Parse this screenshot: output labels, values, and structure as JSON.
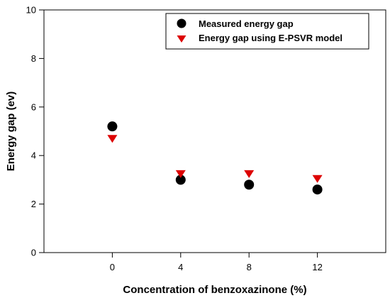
{
  "chart_data": {
    "type": "scatter",
    "xlabel": "Concentration of benzoxazinone (%)",
    "ylabel": "Energy gap (ev)",
    "xlim": [
      -4,
      16
    ],
    "ylim": [
      0,
      10
    ],
    "xticks": [
      0,
      4,
      8,
      12
    ],
    "yticks": [
      0,
      2,
      4,
      6,
      8,
      10
    ],
    "grid": false,
    "legend_position": "top-right",
    "series": [
      {
        "name": "Measured energy gap",
        "marker": "circle",
        "color": "#000000",
        "x": [
          0,
          4,
          8,
          12
        ],
        "y": [
          5.2,
          3.0,
          2.8,
          2.6
        ]
      },
      {
        "name": "Energy gap using E-PSVR model",
        "marker": "triangle-down",
        "color": "#dd0000",
        "x": [
          0,
          4,
          8,
          12
        ],
        "y": [
          4.7,
          3.25,
          3.25,
          3.05
        ]
      }
    ]
  }
}
